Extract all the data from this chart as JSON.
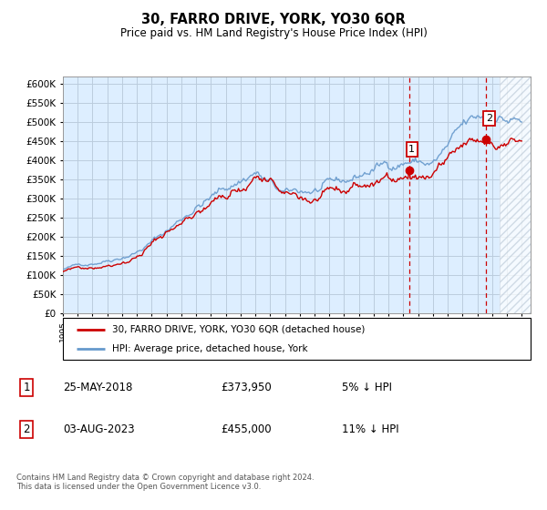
{
  "title": "30, FARRO DRIVE, YORK, YO30 6QR",
  "subtitle": "Price paid vs. HM Land Registry's House Price Index (HPI)",
  "ylim": [
    0,
    620000
  ],
  "yticks": [
    0,
    50000,
    100000,
    150000,
    200000,
    250000,
    300000,
    350000,
    400000,
    450000,
    500000,
    550000,
    600000
  ],
  "hpi_color": "#6699cc",
  "price_color": "#cc0000",
  "vline_color": "#cc0000",
  "chart_bg": "#ddeeff",
  "marker1": {
    "year": 2018.38,
    "value": 373950,
    "label": "1"
  },
  "marker2": {
    "year": 2023.58,
    "value": 455000,
    "label": "2"
  },
  "legend_entry1": "30, FARRO DRIVE, YORK, YO30 6QR (detached house)",
  "legend_entry2": "HPI: Average price, detached house, York",
  "table_entry1_num": "1",
  "table_entry1_date": "25-MAY-2018",
  "table_entry1_price": "£373,950",
  "table_entry1_hpi": "5% ↓ HPI",
  "table_entry2_num": "2",
  "table_entry2_date": "03-AUG-2023",
  "table_entry2_price": "£455,000",
  "table_entry2_hpi": "11% ↓ HPI",
  "footer": "Contains HM Land Registry data © Crown copyright and database right 2024.\nThis data is licensed under the Open Government Licence v3.0.",
  "background_color": "#ffffff",
  "grid_color": "#bbccdd"
}
